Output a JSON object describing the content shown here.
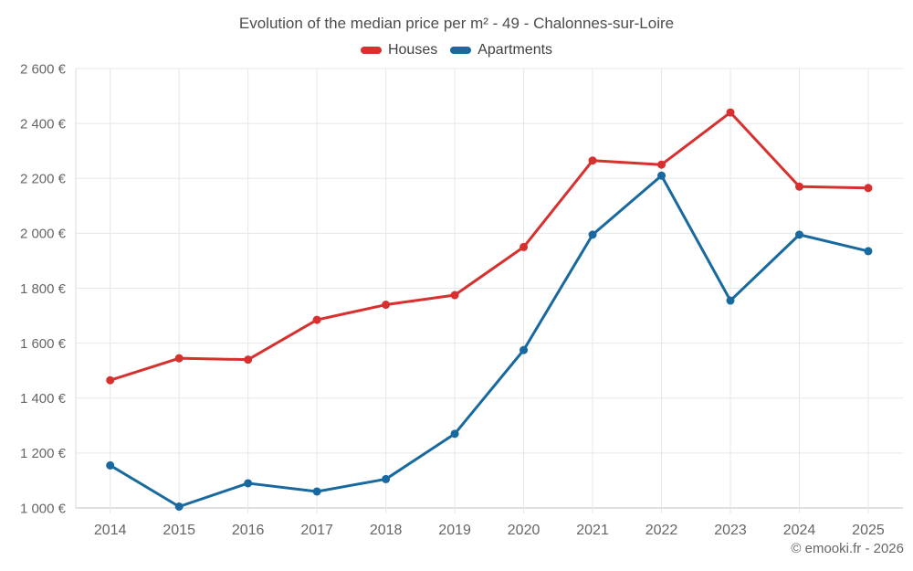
{
  "header": {
    "title": "Evolution of the median price per m² - 49 - Chalonnes-sur-Loire"
  },
  "footer": {
    "credit": "© emooki.fr - 2026"
  },
  "colors": {
    "houses": "#d7302f",
    "apartments": "#17699f",
    "grid_line": "#e7e7e7",
    "axis_line": "#c2c2c2",
    "left_axis_line": "#d8d8d8",
    "tick_text": "#666666",
    "title_text": "#4c4c4c"
  },
  "chart_data": {
    "type": "line",
    "title": "Evolution of the median price per m² - 49 - Chalonnes-sur-Loire",
    "xlabel": "",
    "ylabel": "",
    "categories": [
      "2014",
      "2015",
      "2016",
      "2017",
      "2018",
      "2019",
      "2020",
      "2021",
      "2022",
      "2023",
      "2024",
      "2025"
    ],
    "series": [
      {
        "name": "Houses",
        "color": "#d7302f",
        "values": [
          1465,
          1545,
          1540,
          1685,
          1740,
          1775,
          1950,
          2265,
          2250,
          2440,
          2170,
          2165
        ]
      },
      {
        "name": "Apartments",
        "color": "#17699f",
        "values": [
          1155,
          1005,
          1090,
          1060,
          1105,
          1270,
          1575,
          1995,
          2210,
          1755,
          1995,
          1935
        ]
      }
    ],
    "ylim": [
      1000,
      2600
    ],
    "ytick_step": 200,
    "ytick_labels": [
      "1 000 €",
      "1 200 €",
      "1 400 €",
      "1 600 €",
      "1 800 €",
      "2 000 €",
      "2 200 €",
      "2 400 €",
      "2 600 €"
    ],
    "grid": true,
    "legend_position": "top"
  }
}
